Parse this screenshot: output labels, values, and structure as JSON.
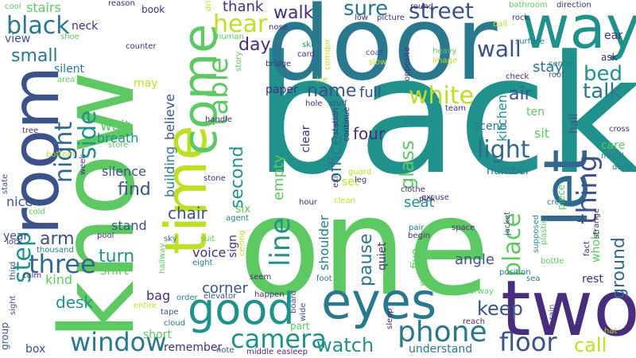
{
  "words": [
    {
      "text": "back",
      "color": "#21918c"
    },
    {
      "text": "know",
      "color": "#5ec962"
    },
    {
      "text": "one",
      "color": "#5ec962"
    },
    {
      "text": "door",
      "color": "#2a788e"
    },
    {
      "text": "room",
      "color": "#3b528b"
    },
    {
      "text": "time",
      "color": "#bddf26"
    },
    {
      "text": "two",
      "color": "#472d7b"
    },
    {
      "text": "way",
      "color": "#21918c"
    },
    {
      "text": "eyes",
      "color": "#2a788e"
    },
    {
      "text": "come",
      "color": "#5ec962"
    },
    {
      "text": "good",
      "color": "#21918c"
    },
    {
      "text": "let",
      "color": "#31688e"
    },
    {
      "text": "window",
      "color": "#2a788e"
    },
    {
      "text": "phone",
      "color": "#2a788e"
    },
    {
      "text": "floor",
      "color": "#3b528b"
    },
    {
      "text": "camera",
      "color": "#21918c"
    },
    {
      "text": "table",
      "color": "#5ec962"
    },
    {
      "text": "thing",
      "color": "#3b528b"
    },
    {
      "text": "street",
      "color": "#3b528b"
    },
    {
      "text": "black",
      "color": "#2a788e"
    },
    {
      "text": "light",
      "color": "#31688e"
    },
    {
      "text": "line",
      "color": "#21918c"
    },
    {
      "text": "three",
      "color": "#31688e"
    },
    {
      "text": "night",
      "color": "#31688e"
    },
    {
      "text": "side",
      "color": "#21918c"
    },
    {
      "text": "wall",
      "color": "#3b528b"
    },
    {
      "text": "hear",
      "color": "#bddf26"
    },
    {
      "text": "white",
      "color": "#bddf26"
    },
    {
      "text": "place",
      "color": "#5ec962"
    },
    {
      "text": "keep",
      "color": "#3b528b"
    },
    {
      "text": "watch",
      "color": "#21918c"
    },
    {
      "text": "call",
      "color": "#bddf26"
    },
    {
      "text": "step",
      "color": "#21918c"
    },
    {
      "text": "bed",
      "color": "#21918c"
    },
    {
      "text": "talk",
      "color": "#2a788e"
    },
    {
      "text": "ground",
      "color": "#31688e"
    },
    {
      "text": "sure",
      "color": "#2a788e"
    },
    {
      "text": "name",
      "color": "#3b528b"
    },
    {
      "text": "second",
      "color": "#21918c"
    },
    {
      "text": "walk",
      "color": "#472d7b"
    },
    {
      "text": "day",
      "color": "#472d7b"
    },
    {
      "text": "small",
      "color": "#2a788e"
    },
    {
      "text": "arm",
      "color": "#3b528b"
    },
    {
      "text": "find",
      "color": "#3b528b"
    },
    {
      "text": "air",
      "color": "#3b528b"
    },
    {
      "text": "glass",
      "color": "#5ec962"
    },
    {
      "text": "office",
      "color": "#2a788e"
    },
    {
      "text": "pause",
      "color": "#2a788e"
    },
    {
      "text": "desk",
      "color": "#21918c"
    },
    {
      "text": "full",
      "color": "#3b528b"
    },
    {
      "text": "four",
      "color": "#472d7b"
    },
    {
      "text": "turn",
      "color": "#21918c"
    },
    {
      "text": "chair",
      "color": "#3b528b"
    },
    {
      "text": "stairs",
      "color": "#5ec962"
    },
    {
      "text": "thank",
      "color": "#472d7b"
    },
    {
      "text": "empty",
      "color": "#5ec962"
    },
    {
      "text": "seat",
      "color": "#21918c"
    },
    {
      "text": "kitchen",
      "color": "#21918c"
    },
    {
      "text": "shoulder",
      "color": "#2a788e"
    },
    {
      "text": "stay",
      "color": "#2a788e"
    },
    {
      "text": "corner",
      "color": "#3b528b"
    },
    {
      "text": "angle",
      "color": "#3b528b"
    },
    {
      "text": "kind",
      "color": "#5ec962"
    },
    {
      "text": "wait",
      "color": "#5ec962"
    },
    {
      "text": "breath",
      "color": "#21918c"
    },
    {
      "text": "building",
      "color": "#2a788e"
    },
    {
      "text": "believe",
      "color": "#3b528b"
    },
    {
      "text": "silence",
      "color": "#3b528b"
    },
    {
      "text": "stand",
      "color": "#3b528b"
    },
    {
      "text": "voice",
      "color": "#472d7b"
    },
    {
      "text": "shirt",
      "color": "#5ec962"
    },
    {
      "text": "box",
      "color": "#3b528b"
    },
    {
      "text": "understand",
      "color": "#2a788e"
    },
    {
      "text": "remember",
      "color": "#472d7b"
    },
    {
      "text": "short",
      "color": "#5ec962"
    },
    {
      "text": "bag",
      "color": "#472d7b"
    },
    {
      "text": "nice",
      "color": "#3b528b"
    },
    {
      "text": "year",
      "color": "#3b528b"
    },
    {
      "text": "sit",
      "color": "#5ec962"
    },
    {
      "text": "hall",
      "color": "#3b528b"
    },
    {
      "text": "ten",
      "color": "#5ec962"
    },
    {
      "text": "rest",
      "color": "#472d7b"
    },
    {
      "text": "care",
      "color": "#5ec962"
    },
    {
      "text": "number",
      "color": "#2a788e"
    },
    {
      "text": "scene",
      "color": "#2a788e"
    },
    {
      "text": "sign",
      "color": "#472d7b"
    },
    {
      "text": "six",
      "color": "#5ec962"
    },
    {
      "text": "whole",
      "color": "#5ec962"
    },
    {
      "text": "five",
      "color": "#5ec962"
    },
    {
      "text": "quiet",
      "color": "#472d7b"
    },
    {
      "text": "clear",
      "color": "#472d7b"
    },
    {
      "text": "paper",
      "color": "#472d7b"
    },
    {
      "text": "silent",
      "color": "#2a788e"
    },
    {
      "text": "neck",
      "color": "#472d7b"
    },
    {
      "text": "view",
      "color": "#3b528b"
    },
    {
      "text": "book",
      "color": "#472d7b"
    },
    {
      "text": "ask",
      "color": "#472d7b"
    },
    {
      "text": "may",
      "color": "#bddf26"
    },
    {
      "text": "part",
      "color": "#5ec962"
    },
    {
      "text": "group",
      "color": "#3b528b"
    },
    {
      "text": "set",
      "color": "#bddf26"
    },
    {
      "text": "piece",
      "color": "#5ec962"
    },
    {
      "text": "counter",
      "color": "#472d7b"
    },
    {
      "text": "pick",
      "color": "#472d7b"
    },
    {
      "text": "seem",
      "color": "#472d7b"
    },
    {
      "text": "happen",
      "color": "#472d7b"
    },
    {
      "text": "foot",
      "color": "#2a788e"
    },
    {
      "text": "safe",
      "color": "#5ec962"
    },
    {
      "text": "sleep",
      "color": "#472d7b"
    },
    {
      "text": "reach",
      "color": "#472d7b"
    },
    {
      "text": "doorway",
      "color": "#5ec962"
    },
    {
      "text": "bottle",
      "color": "#5ec962"
    },
    {
      "text": "thousand",
      "color": "#2a788e"
    },
    {
      "text": "begin",
      "color": "#472d7b"
    },
    {
      "text": "space",
      "color": "#472d7b"
    },
    {
      "text": "crew",
      "color": "#2a788e"
    },
    {
      "text": "jacket",
      "color": "#3b528b"
    },
    {
      "text": "supposed",
      "color": "#21918c"
    },
    {
      "text": "plastic",
      "color": "#5ec962"
    },
    {
      "text": "strange",
      "color": "#472d7b"
    },
    {
      "text": "fact",
      "color": "#472d7b"
    },
    {
      "text": "position",
      "color": "#2a788e"
    },
    {
      "text": "sea",
      "color": "#2a788e"
    },
    {
      "text": "pool",
      "color": "#472d7b"
    },
    {
      "text": "hallway",
      "color": "#5ec962"
    },
    {
      "text": "eight",
      "color": "#2a788e"
    },
    {
      "text": "suit",
      "color": "#5ec962"
    },
    {
      "text": "sky",
      "color": "#2a788e"
    },
    {
      "text": "elevator",
      "color": "#3b528b"
    },
    {
      "text": "order",
      "color": "#2a788e"
    },
    {
      "text": "cloud",
      "color": "#2a788e"
    },
    {
      "text": "tape",
      "color": "#3b528b"
    },
    {
      "text": "entire",
      "color": "#bddf26"
    },
    {
      "text": "note",
      "color": "#3b528b"
    },
    {
      "text": "middle",
      "color": "#472d7b"
    },
    {
      "text": "easleep",
      "color": "#472d7b"
    },
    {
      "text": "hat",
      "color": "#bddf26"
    },
    {
      "text": "rain",
      "color": "#3b528b"
    },
    {
      "text": "wide",
      "color": "#3b528b"
    },
    {
      "text": "board",
      "color": "#3b528b"
    },
    {
      "text": "ceiling",
      "color": "#bddf26"
    },
    {
      "text": "agent",
      "color": "#2a788e"
    },
    {
      "text": "stone",
      "color": "#472d7b"
    },
    {
      "text": "hour",
      "color": "#472d7b"
    },
    {
      "text": "clean",
      "color": "#bddf26"
    },
    {
      "text": "pair",
      "color": "#2a788e"
    },
    {
      "text": "clothe",
      "color": "#472d7b"
    },
    {
      "text": "excuse",
      "color": "#472d7b"
    },
    {
      "text": "leg",
      "color": "#472d7b"
    },
    {
      "text": "guard",
      "color": "#bddf26"
    },
    {
      "text": "exit",
      "color": "#472d7b"
    },
    {
      "text": "handle",
      "color": "#472d7b"
    },
    {
      "text": "tree",
      "color": "#472d7b"
    },
    {
      "text": "store",
      "color": "#5ec962"
    },
    {
      "text": "bottom",
      "color": "#bddf26"
    },
    {
      "text": "week",
      "color": "#472d7b"
    },
    {
      "text": "cold",
      "color": "#5ec962"
    },
    {
      "text": "state",
      "color": "#3b528b"
    },
    {
      "text": "lock",
      "color": "#472d7b"
    },
    {
      "text": "calm",
      "color": "#472d7b"
    },
    {
      "text": "third",
      "color": "#3b528b"
    },
    {
      "text": "sight",
      "color": "#3b528b"
    },
    {
      "text": "cool",
      "color": "#5ec962"
    },
    {
      "text": "shoe",
      "color": "#5ec962"
    },
    {
      "text": "area",
      "color": "#5ec962"
    },
    {
      "text": "human",
      "color": "#5ec962"
    },
    {
      "text": "driver",
      "color": "#bddf26"
    },
    {
      "text": "nose",
      "color": "#472d7b"
    },
    {
      "text": "skin",
      "color": "#21918c"
    },
    {
      "text": "card",
      "color": "#472d7b"
    },
    {
      "text": "bridge",
      "color": "#472d7b"
    },
    {
      "text": "story",
      "color": "#5ec962"
    },
    {
      "text": "corridor",
      "color": "#bddf26"
    },
    {
      "text": "low",
      "color": "#472d7b"
    },
    {
      "text": "coat",
      "color": "#3b528b"
    },
    {
      "text": "slow",
      "color": "#bddf26"
    },
    {
      "text": "picture",
      "color": "#472d7b"
    },
    {
      "text": "round",
      "color": "#472d7b"
    },
    {
      "text": "opposite",
      "color": "#472d7b"
    },
    {
      "text": "heavy",
      "color": "#5ec962"
    },
    {
      "text": "image",
      "color": "#bddf26"
    },
    {
      "text": "station",
      "color": "#472d7b"
    },
    {
      "text": "continue",
      "color": "#472d7b"
    },
    {
      "text": "hole",
      "color": "#472d7b"
    },
    {
      "text": "stuff",
      "color": "#3b528b"
    },
    {
      "text": "ice",
      "color": "#bddf26"
    },
    {
      "text": "team",
      "color": "#472d7b"
    },
    {
      "text": "reason",
      "color": "#472d7b"
    },
    {
      "text": "ball",
      "color": "#bddf26"
    },
    {
      "text": "bathroom",
      "color": "#5ec962"
    },
    {
      "text": "direction",
      "color": "#472d7b"
    },
    {
      "text": "rock",
      "color": "#472d7b"
    },
    {
      "text": "surface",
      "color": "#2a788e"
    },
    {
      "text": "center",
      "color": "#2a788e"
    },
    {
      "text": "check",
      "color": "#472d7b"
    },
    {
      "text": "roof",
      "color": "#3b528b"
    },
    {
      "text": "ear",
      "color": "#472d7b"
    },
    {
      "text": "cross",
      "color": "#472d7b"
    },
    {
      "text": "metal",
      "color": "#2a788e"
    },
    {
      "text": "deck",
      "color": "#2a788e"
    }
  ]
}
